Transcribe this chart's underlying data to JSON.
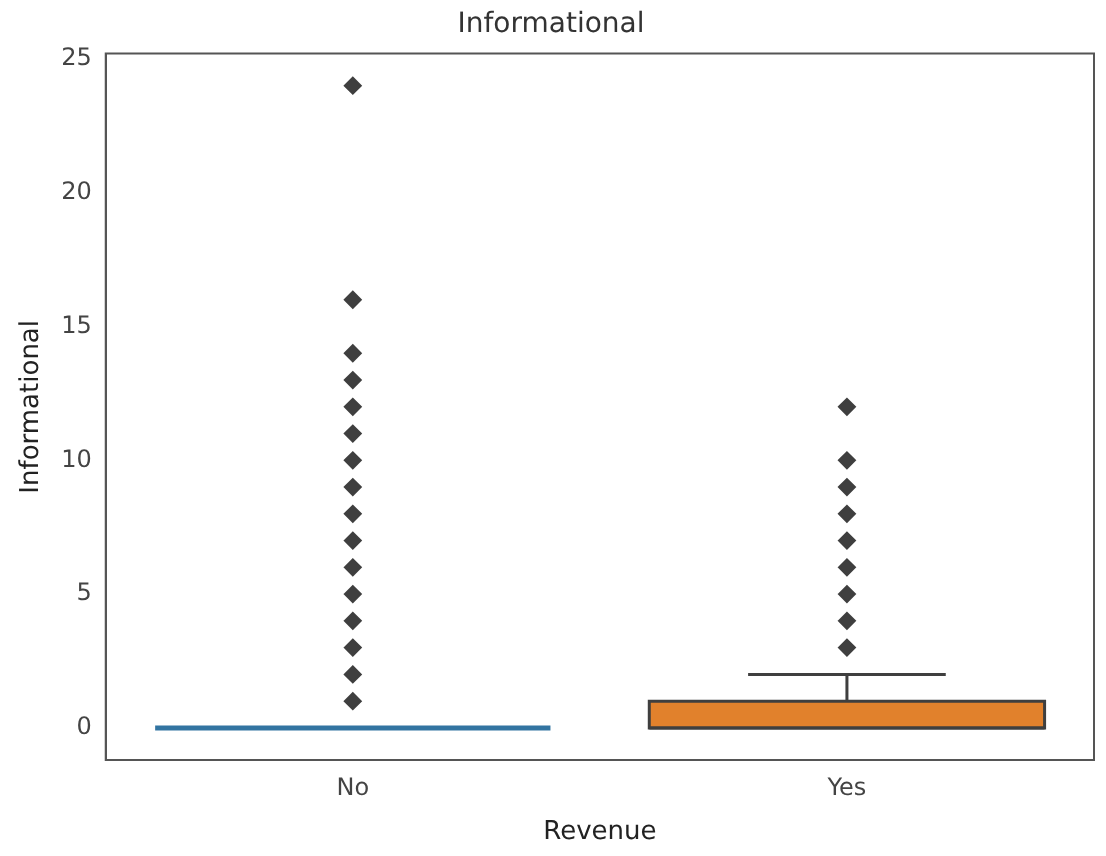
{
  "chart_data": {
    "type": "box",
    "title": "Informational",
    "xlabel": "Revenue",
    "ylabel": "Informational",
    "categories": [
      "No",
      "Yes"
    ],
    "colors": [
      "#3274a1",
      "#e1812c"
    ],
    "boxes": [
      {
        "low": 0,
        "q1": 0,
        "median": 0,
        "q3": 0,
        "high": 0,
        "outliers": [
          1,
          2,
          3,
          4,
          5,
          6,
          7,
          8,
          9,
          10,
          11,
          12,
          13,
          14,
          16,
          24
        ]
      },
      {
        "low": 0,
        "q1": 0,
        "median": 0,
        "q3": 1,
        "high": 2,
        "outliers": [
          3,
          4,
          5,
          6,
          7,
          8,
          9,
          10,
          12
        ]
      }
    ],
    "ylim": [
      -1.2,
      25.2
    ],
    "yticks": [
      0,
      5,
      10,
      15,
      20,
      25
    ],
    "grid": false,
    "legend": false,
    "marker": "diamond"
  }
}
